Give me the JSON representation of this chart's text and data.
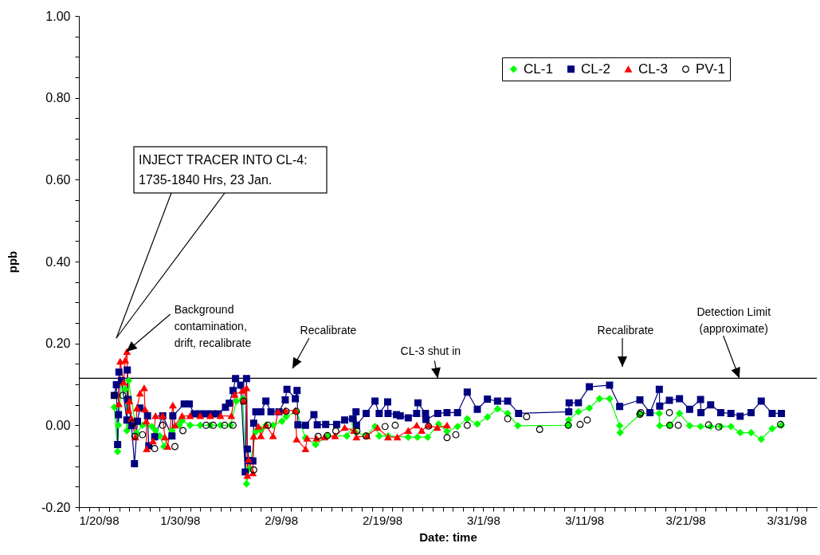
{
  "chart_data": {
    "type": "line",
    "xlabel": "Date: time",
    "ylabel": "ppb",
    "xlim": [
      "1998-01-20",
      "1998-04-03"
    ],
    "xticks": [
      {
        "value": "1998-01-20",
        "label": "1/20/98"
      },
      {
        "value": "1998-01-30",
        "label": "1/30/98"
      },
      {
        "value": "1998-02-09",
        "label": "2/9/98"
      },
      {
        "value": "1998-02-19",
        "label": "2/19/98"
      },
      {
        "value": "1998-03-01",
        "label": "3/1/98"
      },
      {
        "value": "1998-03-11",
        "label": "3/11/98"
      },
      {
        "value": "1998-03-21",
        "label": "3/21/98"
      },
      {
        "value": "1998-03-31",
        "label": "3/31/98"
      },
      {
        "value": "1998-01-21",
        "label": null
      },
      {
        "value": "1998-01-22",
        "label": null
      },
      {
        "value": "1998-01-23",
        "label": null
      },
      {
        "value": "1998-01-24",
        "label": null
      },
      {
        "value": "1998-01-25",
        "label": null
      },
      {
        "value": "1998-01-26",
        "label": null
      },
      {
        "value": "1998-01-27",
        "label": null
      },
      {
        "value": "1998-01-28",
        "label": null
      },
      {
        "value": "1998-01-29",
        "label": null
      },
      {
        "value": "1998-01-31",
        "label": null
      },
      {
        "value": "1998-02-01",
        "label": null
      },
      {
        "value": "1998-02-02",
        "label": null
      },
      {
        "value": "1998-02-03",
        "label": null
      },
      {
        "value": "1998-02-04",
        "label": null
      },
      {
        "value": "1998-02-05",
        "label": null
      },
      {
        "value": "1998-02-06",
        "label": null
      },
      {
        "value": "1998-02-07",
        "label": null
      },
      {
        "value": "1998-02-08",
        "label": null
      },
      {
        "value": "1998-02-10",
        "label": null
      },
      {
        "value": "1998-02-11",
        "label": null
      },
      {
        "value": "1998-02-12",
        "label": null
      },
      {
        "value": "1998-02-13",
        "label": null
      },
      {
        "value": "1998-02-14",
        "label": null
      },
      {
        "value": "1998-02-15",
        "label": null
      },
      {
        "value": "1998-02-16",
        "label": null
      },
      {
        "value": "1998-02-17",
        "label": null
      },
      {
        "value": "1998-02-18",
        "label": null
      },
      {
        "value": "1998-02-20",
        "label": null
      },
      {
        "value": "1998-02-21",
        "label": null
      },
      {
        "value": "1998-02-22",
        "label": null
      },
      {
        "value": "1998-02-23",
        "label": null
      },
      {
        "value": "1998-02-24",
        "label": null
      },
      {
        "value": "1998-02-25",
        "label": null
      },
      {
        "value": "1998-02-26",
        "label": null
      },
      {
        "value": "1998-02-27",
        "label": null
      },
      {
        "value": "1998-02-28",
        "label": null
      },
      {
        "value": "1998-03-02",
        "label": null
      },
      {
        "value": "1998-03-03",
        "label": null
      },
      {
        "value": "1998-03-04",
        "label": null
      },
      {
        "value": "1998-03-05",
        "label": null
      },
      {
        "value": "1998-03-06",
        "label": null
      },
      {
        "value": "1998-03-07",
        "label": null
      },
      {
        "value": "1998-03-08",
        "label": null
      },
      {
        "value": "1998-03-09",
        "label": null
      },
      {
        "value": "1998-03-10",
        "label": null
      },
      {
        "value": "1998-03-12",
        "label": null
      },
      {
        "value": "1998-03-13",
        "label": null
      },
      {
        "value": "1998-03-14",
        "label": null
      },
      {
        "value": "1998-03-15",
        "label": null
      },
      {
        "value": "1998-03-16",
        "label": null
      },
      {
        "value": "1998-03-17",
        "label": null
      },
      {
        "value": "1998-03-18",
        "label": null
      },
      {
        "value": "1998-03-19",
        "label": null
      },
      {
        "value": "1998-03-20",
        "label": null
      },
      {
        "value": "1998-03-22",
        "label": null
      },
      {
        "value": "1998-03-23",
        "label": null
      },
      {
        "value": "1998-03-24",
        "label": null
      },
      {
        "value": "1998-03-25",
        "label": null
      },
      {
        "value": "1998-03-26",
        "label": null
      },
      {
        "value": "1998-03-27",
        "label": null
      },
      {
        "value": "1998-03-28",
        "label": null
      },
      {
        "value": "1998-03-29",
        "label": null
      },
      {
        "value": "1998-03-30",
        "label": null
      },
      {
        "value": "1998-04-01",
        "label": null
      },
      {
        "value": "1998-04-02",
        "label": null
      }
    ],
    "ylim": [
      -0.2,
      1.0
    ],
    "yticks": [
      {
        "value": -0.2,
        "label": "-0.20"
      },
      {
        "value": 0,
        "label": "0.00"
      },
      {
        "value": 0.2,
        "label": "0.20"
      },
      {
        "value": 0.4,
        "label": "0.40"
      },
      {
        "value": 0.6,
        "label": "0.60"
      },
      {
        "value": 0.8,
        "label": "0.80"
      },
      {
        "value": 1.0,
        "label": "1.00"
      },
      {
        "value": -0.15,
        "label": null
      },
      {
        "value": -0.1,
        "label": null
      },
      {
        "value": -0.05,
        "label": null
      },
      {
        "value": 0.05,
        "label": null
      },
      {
        "value": 0.1,
        "label": null
      },
      {
        "value": 0.15,
        "label": null
      },
      {
        "value": 0.25,
        "label": null
      },
      {
        "value": 0.3,
        "label": null
      },
      {
        "value": 0.35,
        "label": null
      },
      {
        "value": 0.45,
        "label": null
      },
      {
        "value": 0.5,
        "label": null
      },
      {
        "value": 0.55,
        "label": null
      },
      {
        "value": 0.65,
        "label": null
      },
      {
        "value": 0.7,
        "label": null
      },
      {
        "value": 0.75,
        "label": null
      },
      {
        "value": 0.85,
        "label": null
      },
      {
        "value": 0.9,
        "label": null
      },
      {
        "value": 0.95,
        "label": null
      }
    ],
    "legend": "top right",
    "ref_lines": [
      {
        "axis": "y",
        "value": 0.115,
        "label": "Detection Limit (approximate)",
        "color": "#000000"
      }
    ],
    "annotations": [
      "INJECT TRACER INTO CL-4: 1735-1840 Hrs, 23 Jan.",
      {
        "text": "Background contamination, drift, recalibrate",
        "x": "1998-01-24T17:00",
        "y": 0.18
      },
      "Recalibrate",
      {
        "text": "CL-3 shut in",
        "x": "1998-02-24T12:00",
        "y": 0.115
      },
      "Recalibrate"
    ],
    "series": [
      {
        "name": "CL-1",
        "type": "line",
        "marker": "diamond",
        "color": "#00ff00",
        "x": [
          "1998-01-23T12:00",
          "1998-01-23T20:00",
          "1998-01-23T22:00",
          "1998-01-24T05:00",
          "1998-01-24T14:00",
          "1998-01-24T18:00",
          "1998-01-24T22:00",
          "1998-01-25T17:00",
          "1998-01-26T07:00",
          "1998-01-27T05:00",
          "1998-01-27T14:00",
          "1998-01-28T00:00",
          "1998-01-28T10:00",
          "1998-01-29T05:00",
          "1998-01-29T22:00",
          "1998-01-30T05:00",
          "1998-01-31T00:00",
          "1998-02-01T00:00",
          "1998-02-02T00:00",
          "1998-02-03T00:00",
          "1998-02-04T00:00",
          "1998-02-04T14:00",
          "1998-02-05T05:00",
          "1998-02-05T14:00",
          "1998-02-05T20:00",
          "1998-02-06T12:00",
          "1998-02-07T00:00",
          "1998-02-07T12:00",
          "1998-02-08T05:00",
          "1998-02-09T02:00",
          "1998-02-09T12:00",
          "1998-02-10T13:00",
          "1998-02-11T10:00",
          "1998-02-12T10:00",
          "1998-02-13T14:00",
          "1998-02-15T12:00",
          "1998-02-16T07:00",
          "1998-02-16T08:00",
          "1998-02-17T10:00",
          "1998-02-18T07:00",
          "1998-02-18T17:00",
          "1998-02-19T14:00",
          "1998-02-21T14:00",
          "1998-02-22T12:00",
          "1998-02-23T12:00",
          "1998-02-24T14:00",
          "1998-02-25T10:00",
          "1998-02-26T11:00",
          "1998-02-27T10:00",
          "1998-02-28T10:00",
          "1998-03-01T10:00",
          "1998-03-02T10:00",
          "1998-03-03T10:00",
          "1998-03-04T10:00",
          "1998-03-09T10:00",
          "1998-03-09T11:00",
          "1998-03-10T10:00",
          "1998-03-11T12:00",
          "1998-03-12T12:00",
          "1998-03-13T12:00",
          "1998-03-14T12:00",
          "1998-03-14T13:00",
          "1998-03-16T12:00",
          "1998-03-17T12:00",
          "1998-03-18T10:00",
          "1998-03-18T11:00",
          "1998-03-19T10:00",
          "1998-03-20T10:00",
          "1998-03-21T10:00",
          "1998-03-22T12:00",
          "1998-03-23T12:00",
          "1998-03-24T12:00",
          "1998-03-25T12:00",
          "1998-03-26T10:00",
          "1998-03-27T12:00",
          "1998-03-28T12:00",
          "1998-03-29T14:00",
          "1998-03-30T12:00"
        ],
        "values": [
          0.044,
          -0.064,
          0.0,
          0.104,
          0.088,
          -0.013,
          0.109,
          -0.019,
          0.0,
          -0.003,
          -0.013,
          -0.026,
          -0.052,
          -0.013,
          0.0,
          0.011,
          0.0,
          0.0,
          0.0,
          0.0,
          0.0,
          0.059,
          0.065,
          -0.143,
          -0.107,
          -0.016,
          -0.01,
          0.0,
          0.0,
          0.01,
          0.021,
          0.033,
          -0.031,
          -0.047,
          -0.026,
          -0.026,
          0.003,
          -0.016,
          -0.026,
          -0.003,
          -0.026,
          -0.026,
          -0.029,
          -0.029,
          -0.029,
          0.003,
          -0.015,
          -0.003,
          0.016,
          0.003,
          0.02,
          0.04,
          0.029,
          -0.001,
          0.0,
          0.013,
          0.033,
          0.042,
          0.065,
          0.065,
          -0.001,
          -0.018,
          0.027,
          0.031,
          0.029,
          -0.001,
          0.0,
          0.029,
          -0.001,
          -0.003,
          -0.003,
          -0.003,
          -0.003,
          -0.018,
          -0.018,
          -0.034,
          -0.008,
          0.0
        ]
      },
      {
        "name": "CL-2",
        "type": "line",
        "marker": "square",
        "color": "#000080",
        "x": [
          "1998-01-23T12:00",
          "1998-01-23T17:00",
          "1998-01-23T20:00",
          "1998-01-23T22:00",
          "1998-01-23T23:00",
          "1998-01-24T05:00",
          "1998-01-24T18:00",
          "1998-01-24T19:00",
          "1998-01-24T21:00",
          "1998-01-25T05:00",
          "1998-01-25T12:00",
          "1998-01-25T19:00",
          "1998-01-26T01:00",
          "1998-01-26T19:00",
          "1998-01-26T22:00",
          "1998-01-27T12:00",
          "1998-01-28T07:00",
          "1998-01-29T05:00",
          "1998-01-29T07:00",
          "1998-01-30T10:00",
          "1998-01-30T22:00",
          "1998-01-31T10:00",
          "1998-02-01T00:00",
          "1998-02-01T14:00",
          "1998-02-02T05:00",
          "1998-02-02T19:00",
          "1998-02-03T12:00",
          "1998-02-03T21:00",
          "1998-02-04T06:00",
          "1998-02-04T12:00",
          "1998-02-05T00:00",
          "1998-02-05T11:00",
          "1998-02-05T14:00",
          "1998-02-05T16:00",
          "1998-02-05T20:00",
          "1998-02-06T05:00",
          "1998-02-06T07:00",
          "1998-02-06T12:00",
          "1998-02-07T00:00",
          "1998-02-07T12:00",
          "1998-02-08T00:00",
          "1998-02-08T19:00",
          "1998-02-09T10:00",
          "1998-02-09T14:00",
          "1998-02-10T10:00",
          "1998-02-10T14:00",
          "1998-02-10T16:00",
          "1998-02-11T10:00",
          "1998-02-12T06:00",
          "1998-02-12T14:00",
          "1998-02-13T10:00",
          "1998-02-14T12:00",
          "1998-02-15T07:00",
          "1998-02-16T02:00",
          "1998-02-16T10:00",
          "1998-02-16T11:00",
          "1998-02-17T10:00",
          "1998-02-18T07:00",
          "1998-02-18T17:00",
          "1998-02-19T13:00",
          "1998-02-19T14:00",
          "1998-02-20T10:00",
          "1998-02-20T19:00",
          "1998-02-21T14:00",
          "1998-02-22T10:00",
          "1998-02-22T13:00",
          "1998-02-23T07:00",
          "1998-02-23T08:00",
          "1998-02-24T12:00",
          "1998-02-25T10:00",
          "1998-02-26T11:00",
          "1998-02-27T10:00",
          "1998-02-28T10:00",
          "1998-03-01T10:00",
          "1998-03-02T10:00",
          "1998-03-03T10:00",
          "1998-03-04T12:00",
          "1998-03-09T11:00",
          "1998-03-09T12:00",
          "1998-03-10T10:00",
          "1998-03-11T12:00",
          "1998-03-13T12:00",
          "1998-03-14T12:00",
          "1998-03-16T12:00",
          "1998-03-17T12:00",
          "1998-03-18T10:00",
          "1998-03-18T11:00",
          "1998-03-19T10:00",
          "1998-03-20T10:00",
          "1998-03-21T10:00",
          "1998-03-22T12:00",
          "1998-03-22T13:00",
          "1998-03-23T12:00",
          "1998-03-24T12:00",
          "1998-03-25T12:00",
          "1998-03-26T10:00",
          "1998-03-27T12:00",
          "1998-03-28T12:00",
          "1998-03-29T14:00",
          "1998-03-30T12:00"
        ],
        "values": [
          0.073,
          0.099,
          -0.047,
          0.026,
          0.13,
          0.109,
          0.013,
          0.135,
          0.063,
          -0.001,
          -0.094,
          0.01,
          0.042,
          0.023,
          -0.05,
          -0.028,
          0.023,
          -0.026,
          0.023,
          0.052,
          0.052,
          0.028,
          0.028,
          0.028,
          0.028,
          0.028,
          0.044,
          0.054,
          0.085,
          0.114,
          0.098,
          -0.114,
          0.114,
          -0.058,
          -0.086,
          -0.087,
          0.005,
          0.033,
          0.033,
          0.059,
          0.033,
          0.033,
          0.062,
          0.088,
          0.065,
          0.085,
          0.001,
          0.0,
          0.026,
          0.001,
          0.002,
          0.002,
          0.013,
          0.016,
          0.033,
          0.0,
          0.029,
          0.059,
          0.029,
          0.057,
          0.029,
          0.026,
          0.023,
          0.018,
          0.029,
          0.055,
          0.029,
          0.014,
          0.029,
          0.031,
          0.031,
          0.081,
          0.039,
          0.064,
          0.059,
          0.059,
          0.029,
          0.033,
          0.055,
          0.055,
          0.094,
          0.098,
          0.046,
          0.062,
          0.031,
          0.088,
          0.047,
          0.061,
          0.065,
          0.039,
          0.063,
          0.031,
          0.05,
          0.031,
          0.029,
          0.022,
          0.031,
          0.059,
          0.029,
          0.029
        ]
      },
      {
        "name": "CL-3",
        "type": "line",
        "marker": "triangle",
        "color": "#ff0000",
        "x": [
          "1998-01-23T23:00",
          "1998-01-24T02:00",
          "1998-01-24T10:00",
          "1998-01-24T14:00",
          "1998-01-24T18:00",
          "1998-01-24T22:00",
          "1998-01-25T00:00",
          "1998-01-25T05:00",
          "1998-01-25T14:00",
          "1998-01-25T18:00",
          "1998-01-26T01:00",
          "1998-01-26T11:00",
          "1998-01-26T13:00",
          "1998-01-26T16:00",
          "1998-01-26T17:00",
          "1998-01-27T08:00",
          "1998-01-27T14:00",
          "1998-01-28T07:00",
          "1998-01-28T12:00",
          "1998-01-28T19:00",
          "1998-01-29T07:00",
          "1998-01-29T12:00",
          "1998-01-30T05:00",
          "1998-01-31T00:00",
          "1998-02-01T00:00",
          "1998-02-02T00:00",
          "1998-02-03T00:00",
          "1998-02-04T02:00",
          "1998-02-04T10:00",
          "1998-02-05T05:00",
          "1998-02-05T07:00",
          "1998-02-05T14:00",
          "1998-02-05T16:00",
          "1998-02-05T19:00",
          "1998-02-06T05:00",
          "1998-02-06T07:00",
          "1998-02-06T18:00",
          "1998-02-07T00:00",
          "1998-02-07T12:00",
          "1998-02-08T05:00",
          "1998-02-08T17:00",
          "1998-02-09T10:00",
          "1998-02-10T10:00",
          "1998-02-10T13:00",
          "1998-02-11T10:00",
          "1998-02-11T14:00",
          "1998-02-12T12:00",
          "1998-02-13T07:00",
          "1998-02-14T08:00",
          "1998-02-15T07:00",
          "1998-02-16T05:00",
          "1998-02-16T11:00",
          "1998-02-17T12:00",
          "1998-02-18T13:00",
          "1998-02-19T14:00",
          "1998-02-20T12:00",
          "1998-02-21T14:00",
          "1998-02-22T10:00",
          "1998-02-22T22:00",
          "1998-02-23T14:00",
          "1998-02-24T11:00",
          "1998-02-25T10:00"
        ],
        "values": [
          0.052,
          0.156,
          0.105,
          0.159,
          0.18,
          0.036,
          0.059,
          0.016,
          -0.029,
          0.042,
          0.078,
          0.091,
          0.039,
          0.01,
          -0.058,
          -0.039,
          0.023,
          0.023,
          -0.029,
          -0.052,
          0.049,
          0.0,
          0.023,
          0.023,
          0.023,
          0.023,
          0.023,
          0.023,
          0.075,
          0.085,
          0.059,
          0.091,
          -0.123,
          -0.084,
          -0.117,
          -0.027,
          -0.003,
          -0.026,
          0.0,
          -0.026,
          0.033,
          0.036,
          0.036,
          -0.034,
          -0.058,
          -0.032,
          -0.032,
          -0.029,
          -0.026,
          -0.006,
          -0.013,
          -0.029,
          -0.026,
          -0.006,
          -0.029,
          -0.029,
          -0.013,
          0.0,
          -0.013,
          0.0,
          -0.006,
          0.0
        ]
      },
      {
        "name": "PV-1",
        "type": "scatter",
        "marker": "circle",
        "color": "#000000",
        "x": [
          "1998-01-23T12:00",
          "1998-01-24T08:00",
          "1998-01-25T08:00",
          "1998-01-25T13:00",
          "1998-01-26T07:00",
          "1998-01-27T12:00",
          "1998-01-28T07:00",
          "1998-01-29T12:00",
          "1998-01-30T07:00",
          "1998-02-01T14:00",
          "1998-02-02T07:00",
          "1998-02-03T10:00",
          "1998-02-04T06:00",
          "1998-02-05T07:00",
          "1998-02-06T07:00",
          "1998-02-07T17:00",
          "1998-02-09T12:00",
          "1998-02-10T12:00",
          "1998-02-12T16:00",
          "1998-02-13T14:00",
          "1998-02-14T10:00",
          "1998-02-16T12:00",
          "1998-02-17T10:00",
          "1998-02-19T07:00",
          "1998-02-20T07:00",
          "1998-02-23T14:00",
          "1998-02-25T10:00",
          "1998-02-26T07:00",
          "1998-02-27T10:00",
          "1998-03-03T10:00",
          "1998-03-05T07:00",
          "1998-03-06T14:00",
          "1998-03-09T10:00",
          "1998-03-10T14:00",
          "1998-03-11T07:00",
          "1998-03-16T12:00",
          "1998-03-16T14:00",
          "1998-03-19T10:00",
          "1998-03-19T11:00",
          "1998-03-20T07:00",
          "1998-03-23T07:00",
          "1998-03-24T07:00",
          "1998-03-30T10:00"
        ],
        "values": [
          0.073,
          0.073,
          0.005,
          -0.027,
          -0.023,
          -0.057,
          0.0,
          -0.052,
          -0.013,
          0.0,
          0.0,
          0.0,
          0.0,
          0.059,
          -0.109,
          0.0,
          0.034,
          0.034,
          -0.027,
          -0.025,
          -0.014,
          -0.014,
          -0.026,
          -0.003,
          0.0,
          -0.002,
          -0.03,
          -0.023,
          0.0,
          0.016,
          0.021,
          -0.01,
          0.0,
          0.002,
          0.013,
          0.027,
          0.031,
          0.031,
          0.0,
          0.0,
          0.001,
          -0.004,
          0.002
        ]
      }
    ]
  }
}
